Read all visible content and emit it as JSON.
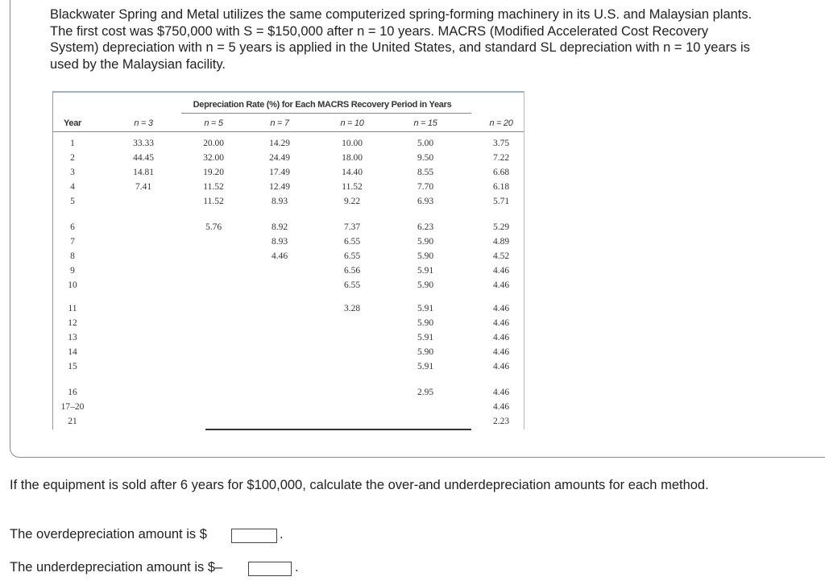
{
  "problem": {
    "paragraph_lines": [
      "Blackwater Spring and Metal utilizes the same computerized spring-forming machinery in its U.S. and Malaysian plants.",
      "The first cost was $750,000 with S = $150,000 after n = 10 years. MACRS (Modified Accelerated Cost Recovery",
      "System) depreciation with n = 5 years is applied in the United States, and standard SL depreciation with n = 10 years is",
      "used by the Malaysian facility."
    ]
  },
  "table": {
    "title": "Depreciation Rate (%) for Each MACRS Recovery Period in Years",
    "year_header": "Year",
    "years": [
      "1",
      "2",
      "3",
      "4",
      "5",
      "6",
      "7",
      "8",
      "9",
      "10",
      "11",
      "12",
      "13",
      "14",
      "15",
      "16",
      "17–20",
      "21"
    ],
    "columns": [
      {
        "header": "n = 3",
        "values": [
          "33.33",
          "44.45",
          "14.81",
          "7.41"
        ]
      },
      {
        "header": "n = 5",
        "values": [
          "20.00",
          "32.00",
          "19.20",
          "11.52",
          "11.52",
          "5.76"
        ]
      },
      {
        "header": "n = 7",
        "values": [
          "14.29",
          "24.49",
          "17.49",
          "12.49",
          "8.93",
          "8.92",
          "8.93",
          "4.46"
        ]
      },
      {
        "header": "n = 10",
        "values": [
          "10.00",
          "18.00",
          "14.40",
          "11.52",
          "9.22",
          "7.37",
          "6.55",
          "6.55",
          "6.56",
          "6.55",
          "3.28"
        ]
      },
      {
        "header": "n = 15",
        "values": [
          "5.00",
          "9.50",
          "8.55",
          "7.70",
          "6.93",
          "6.23",
          "5.90",
          "5.90",
          "5.91",
          "5.90",
          "5.91",
          "5.90",
          "5.91",
          "5.90",
          "5.91",
          "2.95"
        ]
      },
      {
        "header": "n = 20",
        "values": [
          "3.75",
          "7.22",
          "6.68",
          "6.18",
          "5.71",
          "5.29",
          "4.89",
          "4.52",
          "4.46",
          "4.46",
          "4.46",
          "4.46",
          "4.46",
          "4.46",
          "4.46",
          "4.46",
          "4.46",
          "2.23"
        ]
      }
    ]
  },
  "question": "If the equipment is sold after 6 years for $100,000, calculate the over-and underdepreciation amounts for each method.",
  "answers": [
    {
      "prefix": "The overdepreciation amount is $",
      "suffix": "."
    },
    {
      "prefix": "The underdepreciation amount is $–",
      "suffix": "."
    }
  ]
}
